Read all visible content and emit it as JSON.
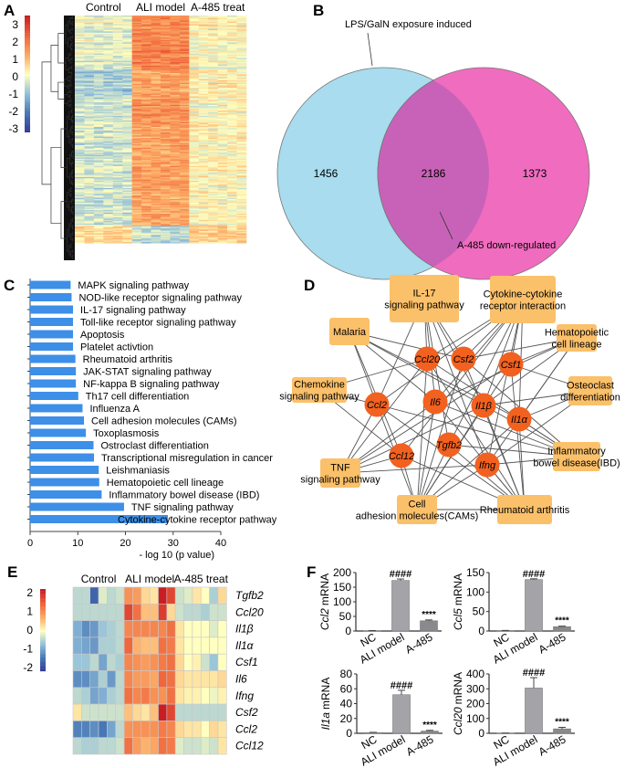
{
  "panels": {
    "a": "A",
    "b": "B",
    "c": "C",
    "d": "D",
    "e": "E",
    "f": "F"
  },
  "colors": {
    "bar_blue": "#3d8fe8",
    "venn_left": "#a8dcee",
    "venn_right": "#f06cbf",
    "overlap": "#c862b8",
    "gene_node": "#f2611f",
    "pathway_box": "#fbc06a",
    "f_bar": "#a4a4a8",
    "f_bar_dark": "#8a8a8e"
  },
  "chart_data": [
    {
      "panel": "A",
      "type": "heatmap",
      "column_groups": [
        "Control",
        "ALI model",
        "A-485 treat"
      ],
      "colorbar_ticks": [
        "3",
        "2",
        "1",
        "0",
        "-1",
        "-2",
        "-3"
      ],
      "color_range": [
        -3,
        3
      ],
      "row_clusters": [
        {
          "share": 0.1,
          "means": [
            -0.2,
            1.4,
            0.1
          ]
        },
        {
          "share": 0.12,
          "means": [
            -0.2,
            1.6,
            0.0
          ]
        },
        {
          "share": 0.12,
          "means": [
            -0.8,
            1.1,
            0.2
          ]
        },
        {
          "share": 0.1,
          "means": [
            -0.4,
            1.3,
            0.0
          ]
        },
        {
          "share": 0.42,
          "means": [
            -0.4,
            1.1,
            0.1
          ]
        },
        {
          "share": 0.07,
          "means": [
            0.5,
            -0.6,
            0.6
          ]
        }
      ],
      "dendrogram": true
    },
    {
      "panel": "B",
      "type": "venn",
      "sets": [
        {
          "name": "LPS/GalN exposure induced",
          "only": "1456"
        },
        {
          "name": "A-485 down-regulated",
          "only": "1373"
        }
      ],
      "overlap": "2186"
    },
    {
      "panel": "C",
      "type": "bar",
      "orientation": "horizontal",
      "categories": [
        "MAPK signaling pathway",
        "NOD-like receptor signaling pathway",
        "IL-17 signaling pathway",
        "Toll-like receptor signaling pathway",
        "Apoptosis",
        "Platelet activtion",
        "Rheumatoid arthritis",
        "JAK-STAT signaling pathway",
        "NF-kappa B signaling pathway",
        "Th17 cell differentiation",
        "Influenza A",
        "Cell adhesion molecules (CAMs)",
        "Toxoplasmosis",
        "Ostroclast differentiation",
        "Transcriptional misregulation in cancer",
        "Leishmaniasis",
        "Hematopoietic cell lineage",
        "Inflammatory bowel disease (IBD)",
        "TNF signaling pathway",
        "Cytokine-cytokine receptor pathway"
      ],
      "values": [
        8.5,
        8.7,
        9.0,
        9.0,
        9.0,
        9.0,
        9.5,
        9.6,
        9.6,
        10.1,
        11.0,
        11.3,
        11.7,
        13.3,
        13.4,
        14.4,
        14.5,
        15.0,
        19.7,
        28.9
      ],
      "xlabel": "- log 10 (p value)",
      "xlim": [
        0,
        40
      ],
      "xticks": [
        "0",
        "10",
        "20",
        "30",
        "40"
      ]
    },
    {
      "panel": "D",
      "type": "network",
      "genes": [
        {
          "id": "Ccl20",
          "label": "Ccl20"
        },
        {
          "id": "Csf2",
          "label": "Csf2"
        },
        {
          "id": "Csf1",
          "label": "Csf1"
        },
        {
          "id": "Ccl2",
          "label": "Ccl2"
        },
        {
          "id": "Il6",
          "label": "Il6"
        },
        {
          "id": "Il1b",
          "label": "Il1β"
        },
        {
          "id": "Il1a",
          "label": "Il1α"
        },
        {
          "id": "Tgfb2",
          "label": "Tgfb2"
        },
        {
          "id": "Ccl12",
          "label": "Ccl12"
        },
        {
          "id": "Ifng",
          "label": "Ifng"
        }
      ],
      "pathways": [
        {
          "id": "il17",
          "lines": [
            "IL-17",
            "signaling pathway"
          ]
        },
        {
          "id": "cyto",
          "lines": [
            "Cytokine-cytokine",
            "receptor interaction"
          ]
        },
        {
          "id": "malaria",
          "lines": [
            "Malaria"
          ]
        },
        {
          "id": "hema",
          "lines": [
            "Hematopoietic",
            "cell lineage"
          ]
        },
        {
          "id": "chemo",
          "lines": [
            "Chemokine",
            "signaling pathway"
          ]
        },
        {
          "id": "osteo",
          "lines": [
            "Osteoclast",
            "differentiation"
          ]
        },
        {
          "id": "ibd",
          "lines": [
            "Inflammatory",
            "bowel disease(IBD)"
          ]
        },
        {
          "id": "tnf",
          "lines": [
            "TNF",
            "signaling pathway"
          ]
        },
        {
          "id": "cam",
          "lines": [
            "Cell",
            "adhesion molecules(CAMs)"
          ]
        },
        {
          "id": "ra",
          "lines": [
            "Rheumatoid arthritis"
          ]
        }
      ],
      "edges": {
        "Ccl20": [
          "il17",
          "cyto",
          "tnf",
          "cam",
          "ra",
          "ibd",
          "chemo"
        ],
        "Csf2": [
          "il17",
          "cyto",
          "hema",
          "ra",
          "cam",
          "malaria",
          "ibd"
        ],
        "Csf1": [
          "cyto",
          "hema",
          "osteo",
          "cam",
          "ra",
          "tnf"
        ],
        "Ccl2": [
          "il17",
          "cyto",
          "malaria",
          "chemo",
          "tnf",
          "cam",
          "ra",
          "ibd"
        ],
        "Il6": [
          "il17",
          "cyto",
          "hema",
          "malaria",
          "tnf",
          "cam",
          "ra",
          "ibd"
        ],
        "Il1b": [
          "il17",
          "cyto",
          "hema",
          "osteo",
          "malaria",
          "tnf",
          "cam",
          "ra",
          "ibd"
        ],
        "Il1a": [
          "cyto",
          "hema",
          "osteo",
          "ibd",
          "cam",
          "ra",
          "malaria"
        ],
        "Tgfb2": [
          "cyto",
          "cam",
          "ra",
          "ibd",
          "il17"
        ],
        "Ccl12": [
          "cyto",
          "chemo",
          "tnf",
          "cam",
          "ra",
          "malaria"
        ],
        "Ifng": [
          "cyto",
          "hema",
          "osteo",
          "tnf",
          "cam",
          "ra",
          "ibd",
          "il17"
        ]
      }
    },
    {
      "panel": "E",
      "type": "heatmap",
      "column_groups": [
        "Control",
        "ALI model",
        "A-485 treat"
      ],
      "columns_per_group": 6,
      "colorbar_ticks": [
        "2",
        "1",
        "0",
        "-1",
        "-2"
      ],
      "color_range": [
        -2,
        2
      ],
      "rows": [
        "Tgfb2",
        "Ccl20",
        "Il1β",
        "Il1α",
        "Csf1",
        "Il6",
        "Ifng",
        "Csf2",
        "Ccl2",
        "Ccl12"
      ],
      "values": [
        [
          -0.4,
          -0.4,
          -1.5,
          -0.2,
          -0.4,
          -0.3,
          0.9,
          0.8,
          0.3,
          0.2,
          2.0,
          1.6,
          -0.3,
          -0.2,
          0.2,
          0.0,
          -0.5,
          0.3
        ],
        [
          -0.4,
          -0.4,
          -0.4,
          -0.4,
          -0.4,
          -0.4,
          1.6,
          1.2,
          0.5,
          0.5,
          1.7,
          0.3,
          -0.3,
          -0.4,
          -0.4,
          -0.5,
          -0.3,
          -0.3
        ],
        [
          -0.8,
          -1.1,
          -1.0,
          -0.6,
          -0.5,
          -0.4,
          1.0,
          1.0,
          1.0,
          1.0,
          1.0,
          1.2,
          0.2,
          0.0,
          0.0,
          0.0,
          -0.2,
          0.0
        ],
        [
          -0.8,
          -0.9,
          -1.0,
          -0.5,
          -0.5,
          -0.4,
          1.3,
          0.6,
          0.5,
          0.5,
          1.2,
          1.1,
          0.2,
          0.0,
          0.0,
          0.0,
          0.0,
          0.0
        ],
        [
          -0.6,
          -0.6,
          -0.4,
          -0.9,
          -0.4,
          -0.5,
          1.0,
          0.9,
          0.8,
          0.9,
          1.1,
          1.2,
          0.3,
          0.0,
          0.1,
          -0.3,
          -0.6,
          0.0
        ],
        [
          -1.1,
          -1.1,
          -0.9,
          -0.5,
          -1.0,
          -0.4,
          1.0,
          0.8,
          0.8,
          0.7,
          1.3,
          1.2,
          0.3,
          0.2,
          0.2,
          0.2,
          0.2,
          0.3
        ],
        [
          -0.4,
          -0.5,
          -0.9,
          -0.8,
          -0.5,
          -0.4,
          1.2,
          1.0,
          1.1,
          0.9,
          0.9,
          1.2,
          0.2,
          0.1,
          0.1,
          0.0,
          -0.1,
          0.1
        ],
        [
          0.2,
          -0.3,
          -0.3,
          -0.3,
          -0.3,
          -0.3,
          0.5,
          0.3,
          0.2,
          0.5,
          2.2,
          1.6,
          -0.4,
          -0.4,
          -0.4,
          -0.4,
          -0.4,
          -0.4
        ],
        [
          -1.2,
          -1.2,
          -1.1,
          -1.3,
          -0.9,
          -0.4,
          0.9,
          0.9,
          0.9,
          0.9,
          1.1,
          1.0,
          0.3,
          0.2,
          0.2,
          0.0,
          0.3,
          0.2
        ],
        [
          -0.4,
          -0.5,
          -0.5,
          -0.4,
          -0.4,
          -0.3,
          1.2,
          0.8,
          0.6,
          0.7,
          1.2,
          1.1,
          -0.2,
          -0.3,
          -0.3,
          -0.2,
          -0.3,
          0.2
        ]
      ]
    },
    {
      "panel": "F",
      "type": "bar",
      "categories": [
        "NC",
        "ALI model",
        "A-485"
      ],
      "subplots": [
        {
          "gene": "Ccl2",
          "unit": "mRNA",
          "ylim": [
            0,
            200
          ],
          "yticks": [
            "0",
            "50",
            "100",
            "150",
            "200"
          ],
          "values": [
            1,
            173,
            35
          ],
          "errors": [
            0.5,
            5,
            3
          ],
          "marks": [
            "",
            "####",
            "****"
          ]
        },
        {
          "gene": "Ccl5",
          "unit": "mRNA",
          "ylim": [
            0,
            150
          ],
          "yticks": [
            "0",
            "50",
            "100",
            "150"
          ],
          "values": [
            1,
            132,
            11
          ],
          "errors": [
            0.5,
            2,
            1.5
          ],
          "marks": [
            "",
            "####",
            "****"
          ]
        },
        {
          "gene": "Il1a",
          "unit": "mRNA",
          "ylim": [
            0,
            80
          ],
          "yticks": [
            "0",
            "20",
            "40",
            "60",
            "80"
          ],
          "values": [
            1,
            52,
            3
          ],
          "errors": [
            0.3,
            6,
            1
          ],
          "marks": [
            "",
            "####",
            "****"
          ]
        },
        {
          "gene": "Ccl20",
          "unit": "mRNA",
          "ylim": [
            0,
            400
          ],
          "yticks": [
            "0",
            "100",
            "200",
            "300",
            "400"
          ],
          "values": [
            1,
            305,
            30
          ],
          "errors": [
            0.5,
            70,
            10
          ],
          "marks": [
            "",
            "####",
            "****"
          ]
        }
      ]
    }
  ]
}
